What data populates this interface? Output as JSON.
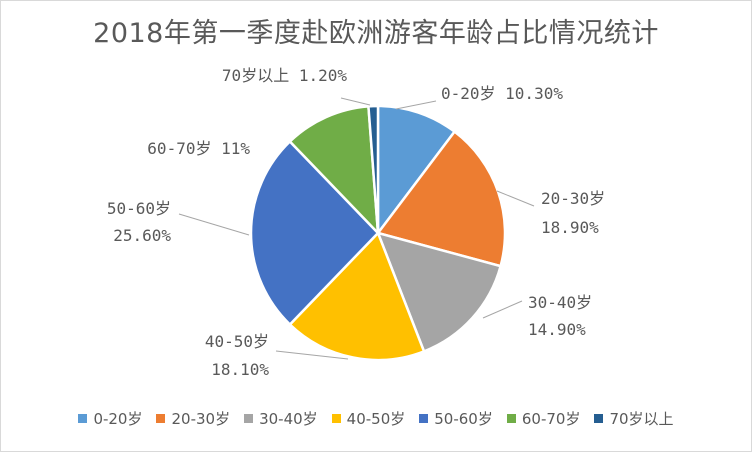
{
  "chart_data": {
    "type": "pie",
    "title": "2018年第一季度赴欧洲游客年龄占比情况统计",
    "slices": [
      {
        "label": "0-20岁",
        "value": 10.3,
        "data_label_name": "0-20岁",
        "data_label_value": "10.30%",
        "color": "#5B9BD5"
      },
      {
        "label": "20-30岁",
        "value": 18.9,
        "data_label_name": "20-30岁",
        "data_label_value": "18.90%",
        "color": "#ED7D31"
      },
      {
        "label": "30-40岁",
        "value": 14.9,
        "data_label_name": "30-40岁",
        "data_label_value": "14.90%",
        "color": "#A5A5A5"
      },
      {
        "label": "40-50岁",
        "value": 18.1,
        "data_label_name": "40-50岁",
        "data_label_value": "18.10%",
        "color": "#FFC000"
      },
      {
        "label": "50-60岁",
        "value": 25.6,
        "data_label_name": "50-60岁",
        "data_label_value": "25.60%",
        "color": "#4472C4"
      },
      {
        "label": "60-70岁",
        "value": 11,
        "data_label_name": "60-70岁",
        "data_label_value": "11%",
        "color": "#70AD47"
      },
      {
        "label": "70岁以上",
        "value": 1.2,
        "data_label_name": "70岁以上",
        "data_label_value": "1.20%",
        "color": "#255E91"
      }
    ],
    "legend_position": "bottom"
  }
}
